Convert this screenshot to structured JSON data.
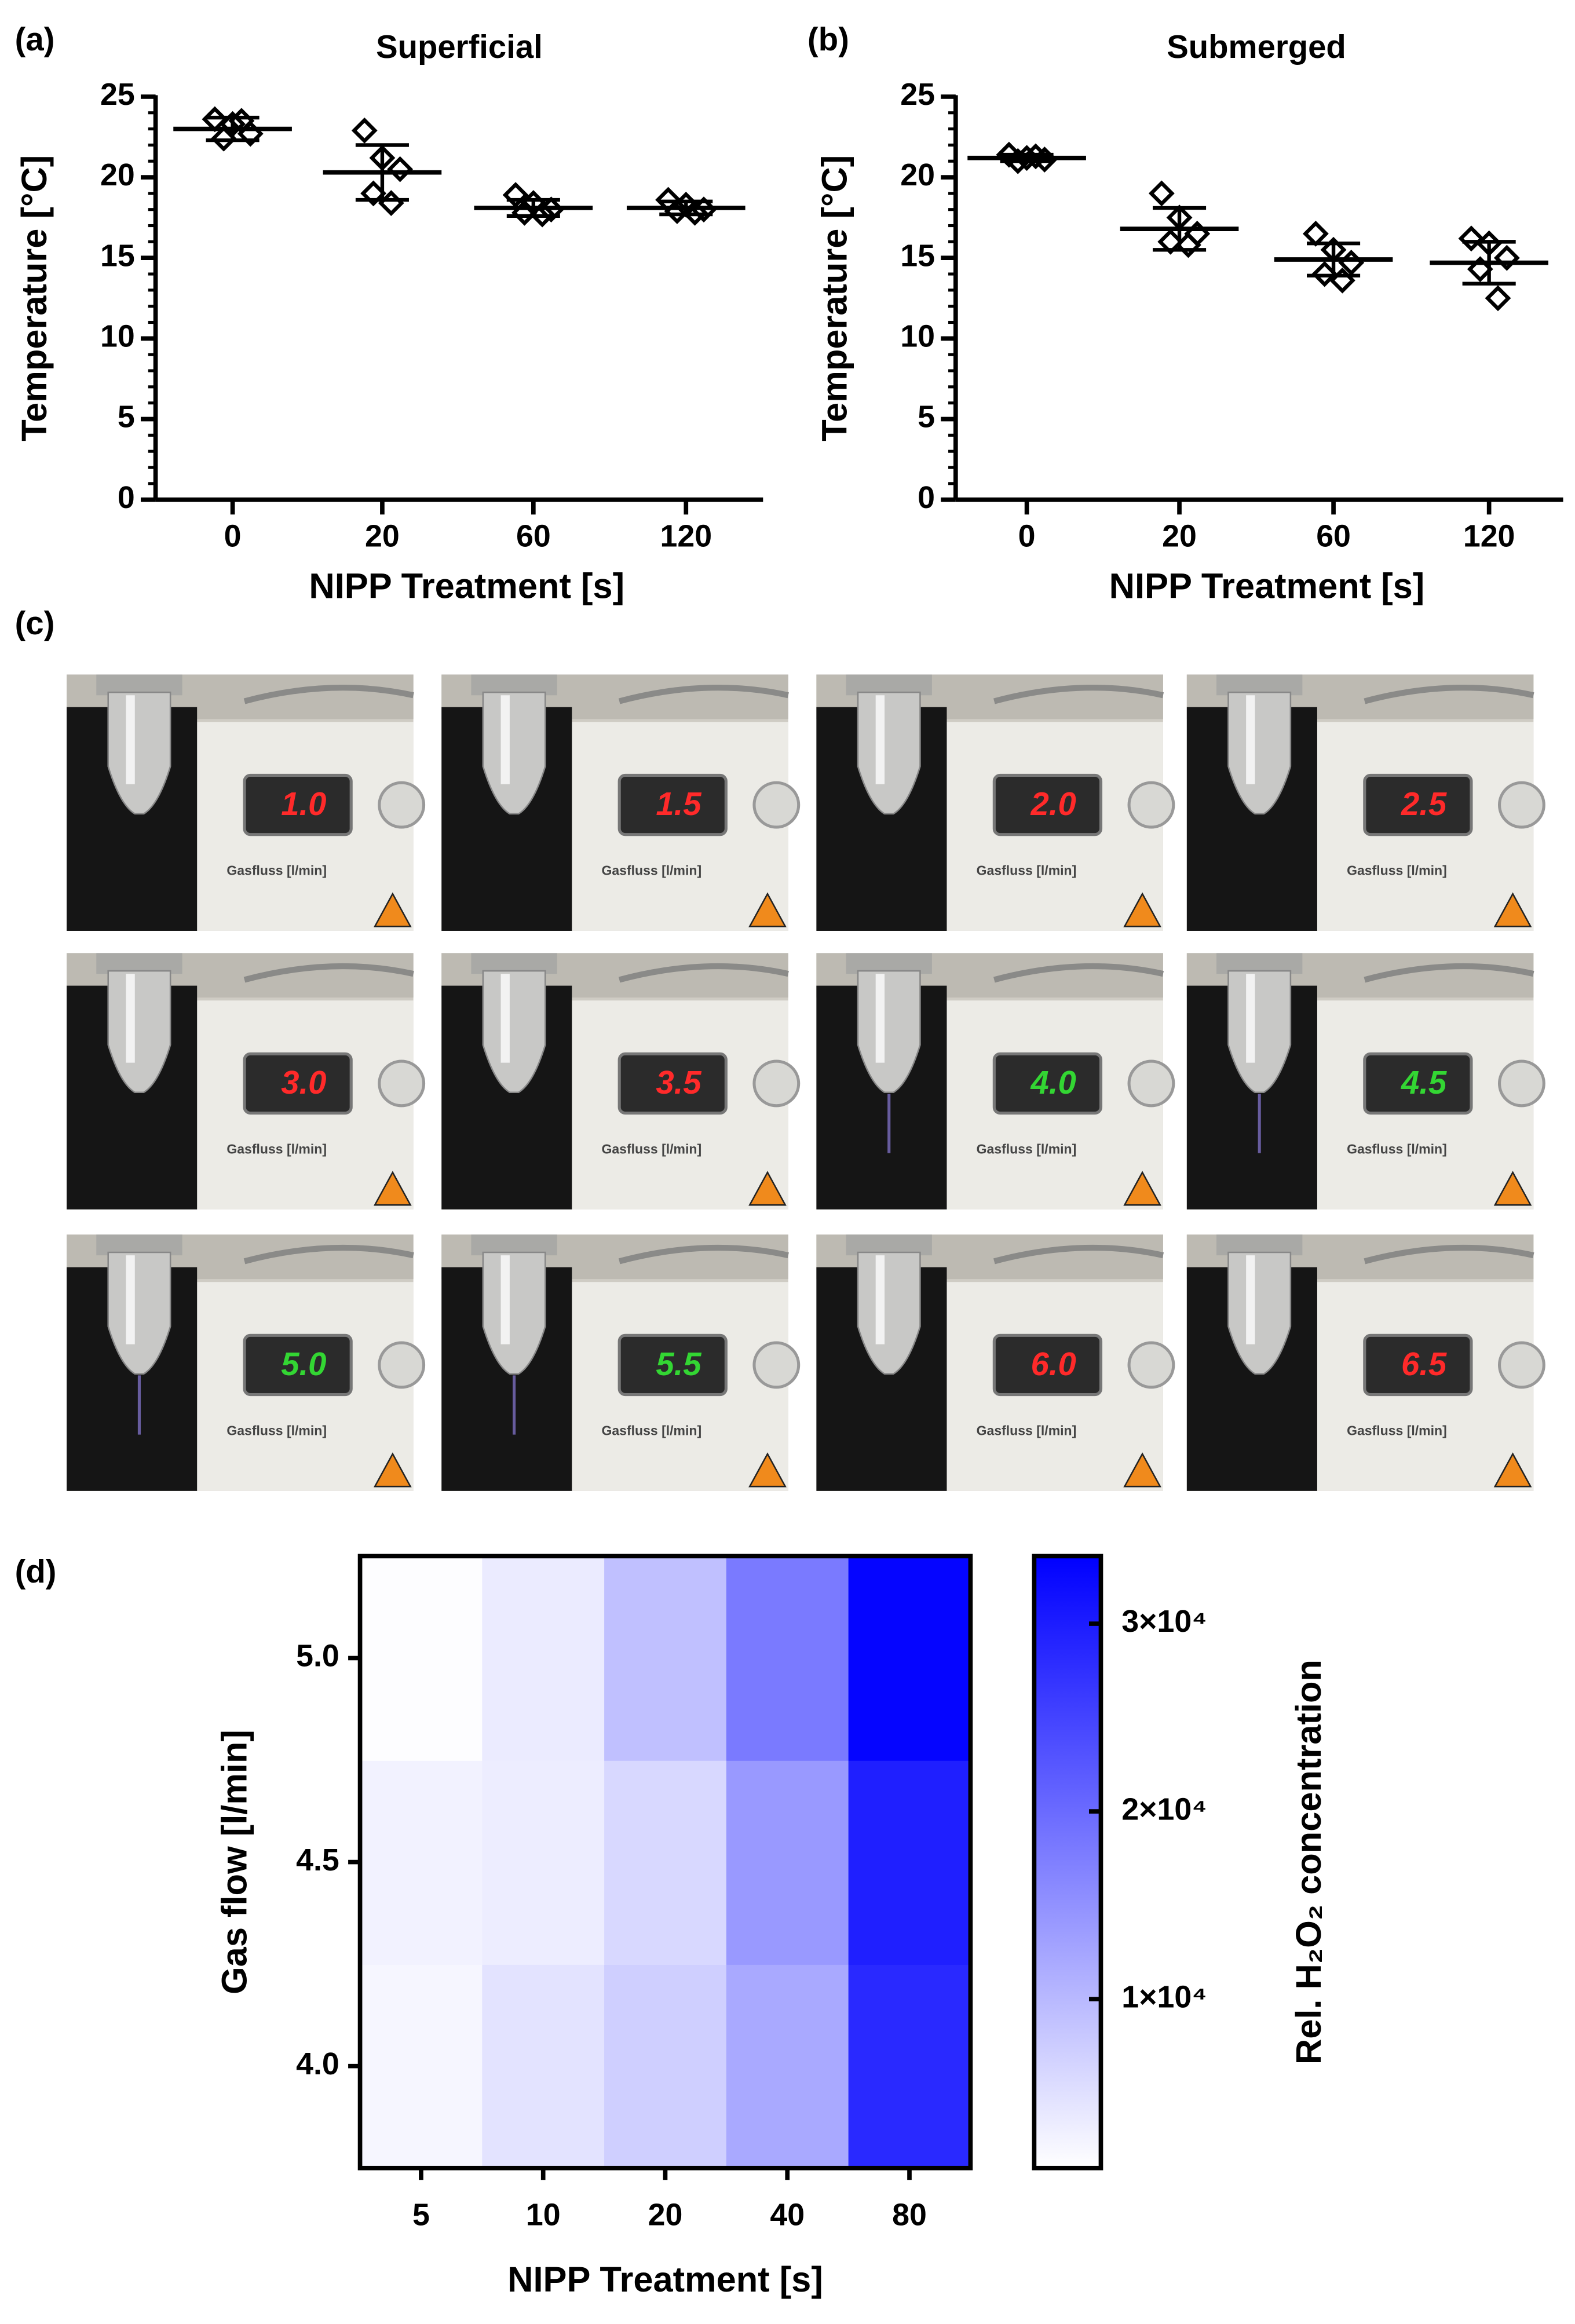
{
  "chart_data": [
    {
      "type": "dot",
      "panel": "(a)",
      "title": "Superficial",
      "xlabel": "NIPP Treatment [s]",
      "ylabel": "Temperature [°C]",
      "categories": [
        "0",
        "20",
        "60",
        "120"
      ],
      "points": [
        [
          23.6,
          23.3,
          22.7,
          22.4,
          23.5
        ],
        [
          22.9,
          21.2,
          20.5,
          19.0,
          18.4
        ],
        [
          18.9,
          18.4,
          18.0,
          17.8,
          17.7
        ],
        [
          18.6,
          18.3,
          18.0,
          17.9,
          17.8
        ]
      ],
      "mean": [
        23.0,
        20.3,
        18.1,
        18.1
      ],
      "sd": [
        0.7,
        1.7,
        0.5,
        0.4
      ],
      "ylim": [
        0,
        25
      ],
      "yticks": [
        0,
        5,
        10,
        15,
        20,
        25
      ],
      "minor_yticks": [
        1,
        2,
        3,
        4,
        6,
        7,
        8,
        9,
        11,
        12,
        13,
        14,
        16,
        17,
        18,
        19,
        21,
        22,
        23,
        24
      ],
      "color": "#000000"
    },
    {
      "type": "dot",
      "panel": "(b)",
      "title": "Submerged",
      "xlabel": "NIPP Treatment [s]",
      "ylabel": "Temperature [°C]",
      "categories": [
        "0",
        "20",
        "60",
        "120"
      ],
      "points": [
        [
          21.4,
          21.2,
          21.1,
          21.0,
          21.3
        ],
        [
          19.0,
          17.5,
          16.5,
          16.0,
          15.8
        ],
        [
          16.5,
          15.5,
          14.7,
          14.0,
          13.6
        ],
        [
          16.2,
          15.9,
          15.0,
          14.3,
          12.5
        ]
      ],
      "mean": [
        21.2,
        16.8,
        14.9,
        14.7
      ],
      "sd": [
        0.2,
        1.3,
        1.0,
        1.3
      ],
      "ylim": [
        0,
        25
      ],
      "yticks": [
        0,
        5,
        10,
        15,
        20,
        25
      ],
      "minor_yticks": [
        1,
        2,
        3,
        4,
        6,
        7,
        8,
        9,
        11,
        12,
        13,
        14,
        16,
        17,
        18,
        19,
        21,
        22,
        23,
        24
      ],
      "color": "#000000"
    },
    {
      "type": "heatmap",
      "panel": "(d)",
      "xlabel": "NIPP Treatment [s]",
      "ylabel": "Gas flow [l/min]",
      "colorbar_label": "Rel. H₂O₂ concentration",
      "x": [
        "5",
        "10",
        "20",
        "40",
        "80"
      ],
      "y": [
        "4.0",
        "4.5",
        "5.0"
      ],
      "values": [
        [
          2200,
          4600,
          7200,
          12000,
          28400
        ],
        [
          2600,
          3300,
          6000,
          14000,
          29700
        ],
        [
          1200,
          3600,
          9000,
          18000,
          33000
        ]
      ],
      "zlim": [
        1000,
        33600
      ],
      "colorscale": [
        "#ffffff",
        "#0000ff"
      ],
      "zticks": [
        {
          "value": 10000,
          "label": "1×10⁴"
        },
        {
          "value": 20000,
          "label": "2×10⁴"
        },
        {
          "value": 30000,
          "label": "3×10⁴"
        }
      ]
    }
  ],
  "photo_grid": {
    "panel": "(c)",
    "display_label": "Gasfluss [l/min]",
    "readings": [
      "1.0",
      "1.5",
      "2.0",
      "2.5",
      "3.0",
      "3.5",
      "4.0",
      "4.5",
      "5.0",
      "5.5",
      "6.0",
      "6.5"
    ],
    "reading_colors": [
      "#ff2a2a",
      "#ff2a2a",
      "#ff2a2a",
      "#ff2a2a",
      "#ff2a2a",
      "#ff2a2a",
      "#33d633",
      "#33d633",
      "#33d633",
      "#33d633",
      "#ff2a2a",
      "#ff2a2a"
    ]
  }
}
